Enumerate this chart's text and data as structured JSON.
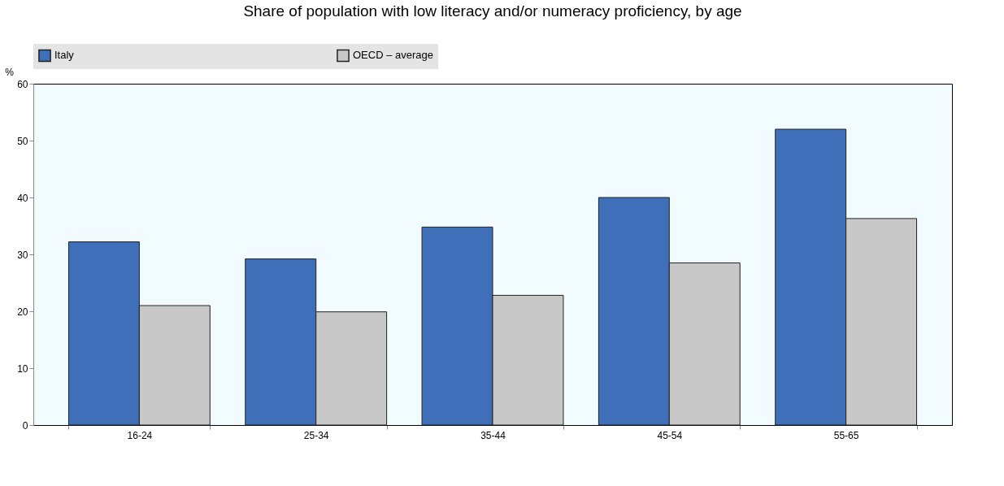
{
  "chart_data": {
    "type": "bar",
    "title": "Share of population with low literacy and/or numeracy proficiency, by age",
    "ylabel": "%",
    "categories": [
      "16-24",
      "25-34",
      "35-44",
      "45-54",
      "55-65"
    ],
    "series": [
      {
        "name": "Italy",
        "color": "#3e6fb8",
        "values": [
          32.2,
          29.2,
          34.8,
          40.0,
          52.0
        ]
      },
      {
        "name": "OECD – average",
        "color": "#c8c8c8",
        "values": [
          21.0,
          19.9,
          22.8,
          28.5,
          36.3
        ]
      }
    ],
    "ylim": [
      0,
      60
    ],
    "yticks": [
      0,
      10,
      20,
      30,
      40,
      50,
      60
    ],
    "grid": false,
    "legend": "top"
  }
}
